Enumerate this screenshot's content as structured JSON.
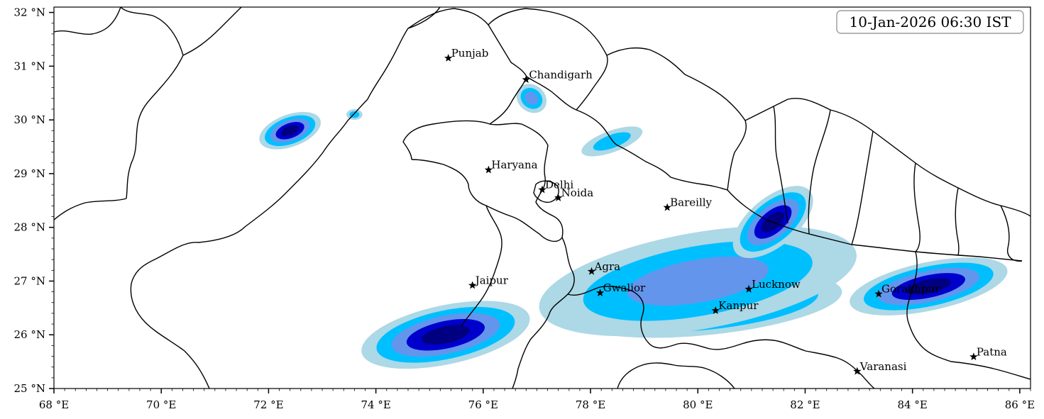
{
  "timestamp": "10-Jan-2026 06:30 IST",
  "axes": {
    "lon_range": [
      68,
      86.2
    ],
    "lat_range": [
      25,
      32.1
    ],
    "x_ticks": [
      {
        "value": 68,
        "label": "68 °E"
      },
      {
        "value": 70,
        "label": "70 °E"
      },
      {
        "value": 72,
        "label": "72 °E"
      },
      {
        "value": 74,
        "label": "74 °E"
      },
      {
        "value": 76,
        "label": "76 °E"
      },
      {
        "value": 78,
        "label": "78 °E"
      },
      {
        "value": 80,
        "label": "80 °E"
      },
      {
        "value": 82,
        "label": "82 °E"
      },
      {
        "value": 84,
        "label": "84 °E"
      },
      {
        "value": 86,
        "label": "86 °E"
      }
    ],
    "y_ticks": [
      {
        "value": 25,
        "label": "25 °N"
      },
      {
        "value": 26,
        "label": "26 °N"
      },
      {
        "value": 27,
        "label": "27 °N"
      },
      {
        "value": 28,
        "label": "28 °N"
      },
      {
        "value": 29,
        "label": "29 °N"
      },
      {
        "value": 30,
        "label": "30 °N"
      },
      {
        "value": 31,
        "label": "31 °N"
      },
      {
        "value": 32,
        "label": "32 °N"
      }
    ]
  },
  "cities": [
    {
      "name": "Punjab",
      "lon": 75.35,
      "lat": 31.15
    },
    {
      "name": "Chandigarh",
      "lon": 76.8,
      "lat": 30.75
    },
    {
      "name": "Haryana",
      "lon": 76.1,
      "lat": 29.07
    },
    {
      "name": "Delhi",
      "lon": 77.1,
      "lat": 28.7
    },
    {
      "name": "Noida",
      "lon": 77.4,
      "lat": 28.55
    },
    {
      "name": "Bareilly",
      "lon": 79.43,
      "lat": 28.37
    },
    {
      "name": "Agra",
      "lon": 78.02,
      "lat": 27.18
    },
    {
      "name": "Jaipur",
      "lon": 75.8,
      "lat": 26.92
    },
    {
      "name": "Gwalior",
      "lon": 78.18,
      "lat": 26.78
    },
    {
      "name": "Lucknow",
      "lon": 80.95,
      "lat": 26.85
    },
    {
      "name": "Kanpur",
      "lon": 80.33,
      "lat": 26.45
    },
    {
      "name": "Gorakhpur",
      "lon": 83.37,
      "lat": 26.76
    },
    {
      "name": "Varanasi",
      "lon": 82.97,
      "lat": 25.32
    },
    {
      "name": "Patna",
      "lon": 85.14,
      "lat": 25.59
    }
  ],
  "fog_levels": [
    {
      "level": 1,
      "color": "#add8e6"
    },
    {
      "level": 2,
      "color": "#00bfff"
    },
    {
      "level": 3,
      "color": "#6495ed"
    },
    {
      "level": 4,
      "color": "#0000cd"
    },
    {
      "level": 5,
      "color": "#000080"
    }
  ],
  "fog_regions": [
    {
      "name": "west-pakistan-cell",
      "lon": 72.4,
      "lat": 29.8,
      "rx": 0.6,
      "ry": 0.3,
      "rot": -20,
      "max_level": 5
    },
    {
      "name": "west-pakistan-east-cell",
      "lon": 73.6,
      "lat": 30.1,
      "rx": 0.15,
      "ry": 0.1,
      "rot": 0,
      "max_level": 2
    },
    {
      "name": "chandigarh-cell",
      "lon": 76.9,
      "lat": 30.4,
      "rx": 0.3,
      "ry": 0.25,
      "rot": 40,
      "max_level": 3
    },
    {
      "name": "rajasthan-cell",
      "lon": 75.3,
      "lat": 26.0,
      "rx": 1.6,
      "ry": 0.55,
      "rot": -12,
      "max_level": 5
    },
    {
      "name": "gwalior-kanpur-core",
      "lon": 80.2,
      "lat": 26.55,
      "rx": 2.5,
      "ry": 0.55,
      "rot": -6,
      "max_level": 5
    },
    {
      "name": "central-up-band",
      "lon": 80.0,
      "lat": 27.0,
      "rx": 3.0,
      "ry": 0.9,
      "rot": -10,
      "max_level": 3
    },
    {
      "name": "tarai-cell",
      "lon": 81.4,
      "lat": 28.1,
      "rx": 0.9,
      "ry": 0.45,
      "rot": -40,
      "max_level": 5
    },
    {
      "name": "gorakhpur-cell",
      "lon": 84.3,
      "lat": 26.9,
      "rx": 1.5,
      "ry": 0.45,
      "rot": -12,
      "max_level": 5
    },
    {
      "name": "uttarakhand-plains",
      "lon": 78.4,
      "lat": 29.6,
      "rx": 0.6,
      "ry": 0.2,
      "rot": -20,
      "max_level": 2
    }
  ]
}
